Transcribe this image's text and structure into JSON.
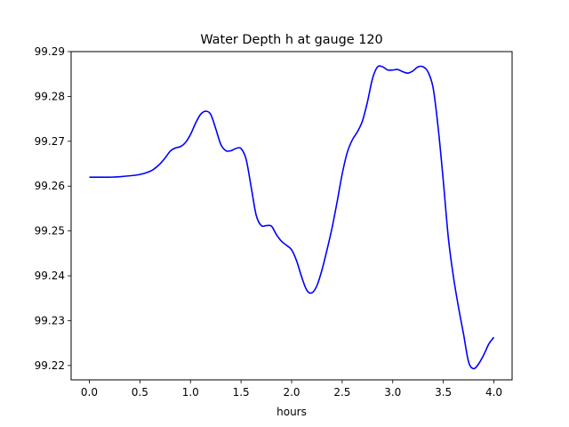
{
  "chart_data": {
    "type": "line",
    "title": "Water Depth h at gauge 120",
    "xlabel": "hours",
    "ylabel": "",
    "xlim": [
      -0.18,
      4.18
    ],
    "ylim": [
      99.2168,
      99.29
    ],
    "x_ticks": [
      0.0,
      0.5,
      1.0,
      1.5,
      2.0,
      2.5,
      3.0,
      3.5,
      4.0
    ],
    "x_tick_labels": [
      "0.0",
      "0.5",
      "1.0",
      "1.5",
      "2.0",
      "2.5",
      "3.0",
      "3.5",
      "4.0"
    ],
    "y_ticks": [
      99.22,
      99.23,
      99.24,
      99.25,
      99.26,
      99.27,
      99.28,
      99.29
    ],
    "y_tick_labels": [
      "99.22",
      "99.23",
      "99.24",
      "99.25",
      "99.26",
      "99.27",
      "99.28",
      "99.29"
    ],
    "grid": false,
    "series": [
      {
        "color": "#0000ff",
        "x": [
          0.0,
          0.1,
          0.2,
          0.3,
          0.4,
          0.5,
          0.6,
          0.65,
          0.7,
          0.75,
          0.8,
          0.85,
          0.9,
          0.95,
          1.0,
          1.05,
          1.1,
          1.15,
          1.2,
          1.25,
          1.3,
          1.35,
          1.4,
          1.45,
          1.5,
          1.55,
          1.6,
          1.65,
          1.7,
          1.75,
          1.8,
          1.85,
          1.9,
          1.95,
          2.0,
          2.05,
          2.1,
          2.15,
          2.2,
          2.25,
          2.3,
          2.35,
          2.4,
          2.45,
          2.5,
          2.55,
          2.6,
          2.65,
          2.7,
          2.75,
          2.8,
          2.85,
          2.9,
          2.95,
          3.0,
          3.05,
          3.1,
          3.15,
          3.2,
          3.25,
          3.3,
          3.35,
          3.4,
          3.45,
          3.5,
          3.55,
          3.6,
          3.65,
          3.7,
          3.75,
          3.8,
          3.85,
          3.9,
          3.95,
          4.0
        ],
        "y": [
          99.262,
          99.262,
          99.262,
          99.2621,
          99.2623,
          99.2626,
          99.2633,
          99.264,
          99.265,
          99.2663,
          99.2678,
          99.2685,
          99.2688,
          99.2697,
          99.2715,
          99.274,
          99.276,
          99.2767,
          99.276,
          99.2728,
          99.2693,
          99.2679,
          99.2679,
          99.2684,
          99.2684,
          99.266,
          99.2598,
          99.2535,
          99.2512,
          99.2512,
          99.2511,
          99.2492,
          99.2477,
          99.2468,
          99.2458,
          99.2433,
          99.2397,
          99.2368,
          99.2362,
          99.2378,
          99.2413,
          99.2458,
          99.2507,
          99.2565,
          99.2627,
          99.2675,
          99.2703,
          99.2721,
          99.2745,
          99.2788,
          99.284,
          99.2866,
          99.2866,
          99.2859,
          99.2859,
          99.286,
          99.2855,
          99.2852,
          99.2857,
          99.2866,
          99.2866,
          99.2854,
          99.2818,
          99.2728,
          99.2611,
          99.2484,
          99.2398,
          99.233,
          99.227,
          99.2208,
          99.2193,
          99.2204,
          99.2224,
          99.2248,
          99.2263
        ]
      }
    ]
  }
}
